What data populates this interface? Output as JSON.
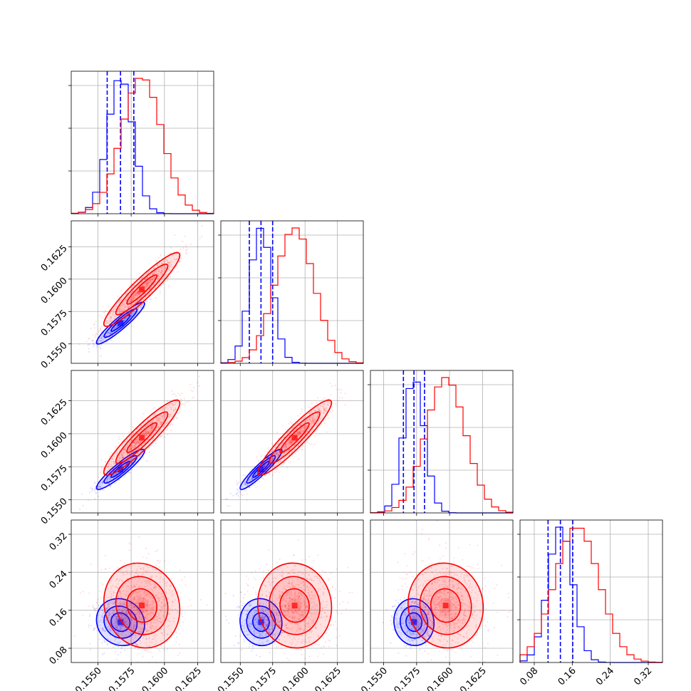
{
  "chart_data": {
    "type": "corner",
    "n_params": 4,
    "x_ticks": [
      [
        "0.1550",
        "0.1575",
        "0.1600",
        "0.1625"
      ],
      [
        "0.1550",
        "0.1575",
        "0.1600",
        "0.1625"
      ],
      [
        "0.1550",
        "0.1575",
        "0.1600",
        "0.1625"
      ],
      [
        "0.08",
        "0.16",
        "0.24",
        "0.32"
      ]
    ],
    "y_ticks": {
      "1": [
        "0.1550",
        "0.1575",
        "0.1600",
        "0.1625"
      ],
      "2": [
        "0.1550",
        "0.1575",
        "0.1600",
        "0.1625"
      ],
      "3": [
        "0.08",
        "0.16",
        "0.24",
        "0.32"
      ]
    },
    "ranges": [
      [
        0.153,
        0.1637
      ],
      [
        0.1535,
        0.1645
      ],
      [
        0.154,
        0.1648
      ],
      [
        0.05,
        0.35
      ]
    ],
    "series": [
      {
        "color": "#0000ff",
        "means": [
          0.1567,
          0.1566,
          0.1573,
          0.135
        ],
        "sds": [
          0.00095,
          0.00085,
          0.0008,
          0.026
        ],
        "quantiles": [
          [
            0.1557,
            0.1567,
            0.1577
          ],
          [
            0.1557,
            0.1566,
            0.1575
          ],
          [
            0.1565,
            0.1573,
            0.1581
          ],
          [
            0.109,
            0.135,
            0.161
          ]
        ]
      },
      {
        "color": "#ff0000",
        "means": [
          0.1583,
          0.1592,
          0.1597,
          0.17
        ],
        "sds": [
          0.0015,
          0.0015,
          0.0015,
          0.047
        ]
      }
    ],
    "correlations": [
      [
        0,
        1,
        0.93
      ],
      [
        0,
        2,
        0.92
      ],
      [
        1,
        2,
        0.93
      ],
      [
        0,
        3,
        -0.1
      ],
      [
        1,
        3,
        -0.05
      ],
      [
        2,
        3,
        -0.05
      ]
    ],
    "grid": true
  }
}
